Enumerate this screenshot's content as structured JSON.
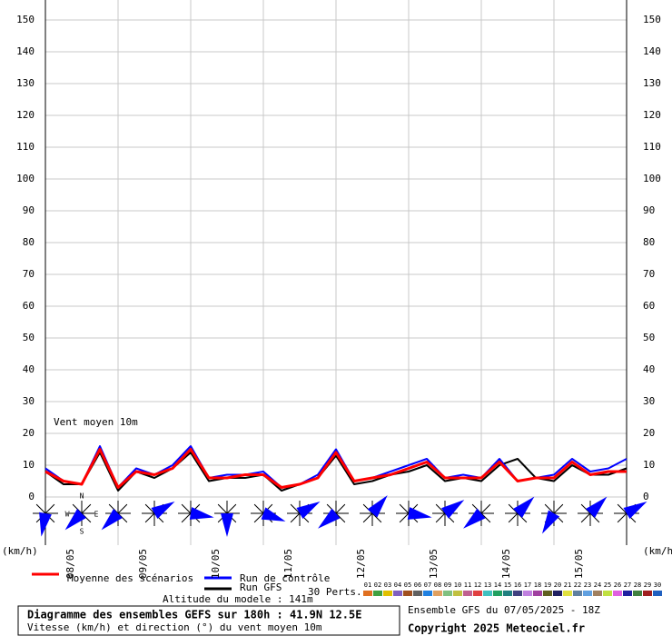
{
  "chart_data": {
    "type": "line",
    "annotation": "Vent moyen 10m",
    "unit_left": "(km/h)",
    "unit_right": "(km/h)",
    "xlim": [
      0,
      192
    ],
    "xticks": [
      {
        "value": 0,
        "label": "08/05"
      },
      {
        "value": 24,
        "label": "09/05"
      },
      {
        "value": 48,
        "label": "10/05"
      },
      {
        "value": 72,
        "label": "11/05"
      },
      {
        "value": 96,
        "label": "12/05"
      },
      {
        "value": 120,
        "label": "13/05"
      },
      {
        "value": 144,
        "label": "14/05"
      },
      {
        "value": 168,
        "label": "15/05"
      }
    ],
    "ylim": [
      0,
      150
    ],
    "yticks": [
      0,
      10,
      20,
      30,
      40,
      50,
      60,
      70,
      80,
      90,
      100,
      110,
      120,
      130,
      140,
      150
    ],
    "grid": true,
    "x": [
      0,
      6,
      12,
      18,
      24,
      30,
      36,
      42,
      48,
      54,
      60,
      66,
      72,
      78,
      84,
      90,
      96,
      102,
      108,
      114,
      120,
      126,
      132,
      138,
      144,
      150,
      156,
      162,
      168,
      174,
      180,
      186,
      192
    ],
    "series": [
      {
        "name": "Moyenne des scénarios",
        "color": "#ff0000",
        "width": 3,
        "values": [
          8,
          5,
          4,
          15,
          3,
          8,
          7,
          9,
          15,
          6,
          6,
          7,
          7,
          3,
          4,
          6,
          14,
          5,
          6,
          7,
          9,
          11,
          6,
          6,
          6,
          11,
          5,
          6,
          6,
          11,
          7,
          8,
          8
        ]
      },
      {
        "name": "Run de contrôle",
        "color": "#0000ff",
        "width": 2,
        "values": [
          9,
          5,
          4,
          16,
          3,
          9,
          7,
          10,
          16,
          6,
          7,
          7,
          8,
          3,
          4,
          7,
          15,
          5,
          6,
          8,
          10,
          12,
          6,
          7,
          6,
          12,
          5,
          6,
          7,
          12,
          8,
          9,
          12
        ]
      },
      {
        "name": "Run GFS",
        "color": "#000000",
        "width": 2,
        "values": [
          8,
          4,
          4,
          14,
          2,
          8,
          6,
          9,
          14,
          5,
          6,
          6,
          7,
          2,
          4,
          6,
          13,
          4,
          5,
          7,
          8,
          10,
          5,
          6,
          5,
          10,
          12,
          6,
          5,
          10,
          7,
          7,
          9
        ]
      }
    ],
    "wind_roses": {
      "compass": {
        "north": "N",
        "west": "W",
        "east": "E",
        "south": "S"
      },
      "directions": [
        190,
        225,
        225,
        60,
        100,
        180,
        110,
        60,
        230,
        40,
        100,
        55,
        230,
        45,
        210,
        45,
        60
      ]
    },
    "perturbations": {
      "label": "30 Perts.",
      "members": [
        {
          "name": "01",
          "color": "#e07020"
        },
        {
          "name": "02",
          "color": "#40a040"
        },
        {
          "name": "03",
          "color": "#e0c000"
        },
        {
          "name": "04",
          "color": "#8060c0"
        },
        {
          "name": "05",
          "color": "#a05020"
        },
        {
          "name": "06",
          "color": "#606060"
        },
        {
          "name": "07",
          "color": "#2080e0"
        },
        {
          "name": "08",
          "color": "#e0a060"
        },
        {
          "name": "09",
          "color": "#80c080"
        },
        {
          "name": "10",
          "color": "#c0c040"
        },
        {
          "name": "11",
          "color": "#c06090"
        },
        {
          "name": "12",
          "color": "#e04040"
        },
        {
          "name": "13",
          "color": "#40c0c0"
        },
        {
          "name": "14",
          "color": "#20a060"
        },
        {
          "name": "15",
          "color": "#208080"
        },
        {
          "name": "16",
          "color": "#404080"
        },
        {
          "name": "17",
          "color": "#c080e0"
        },
        {
          "name": "18",
          "color": "#a040a0"
        },
        {
          "name": "19",
          "color": "#606020"
        },
        {
          "name": "20",
          "color": "#202060"
        },
        {
          "name": "21",
          "color": "#e0e040"
        },
        {
          "name": "22",
          "color": "#6080a0"
        },
        {
          "name": "23",
          "color": "#60a0e0"
        },
        {
          "name": "24",
          "color": "#a08060"
        },
        {
          "name": "25",
          "color": "#c0e040"
        },
        {
          "name": "26",
          "color": "#e060e0"
        },
        {
          "name": "27",
          "color": "#2020a0"
        },
        {
          "name": "28",
          "color": "#408040"
        },
        {
          "name": "29",
          "color": "#a02020"
        },
        {
          "name": "30",
          "color": "#2060c0"
        }
      ]
    },
    "altitude": "Altitude du modele : 141m",
    "title": "Diagramme des ensembles GEFS sur 180h : 41.9N 12.5E",
    "subtitle": "Vitesse (km/h) et direction (°) du vent moyen 10m",
    "run_info": "Ensemble GFS du 07/05/2025 - 18Z",
    "copyright": "Copyright 2025 Meteociel.fr"
  }
}
